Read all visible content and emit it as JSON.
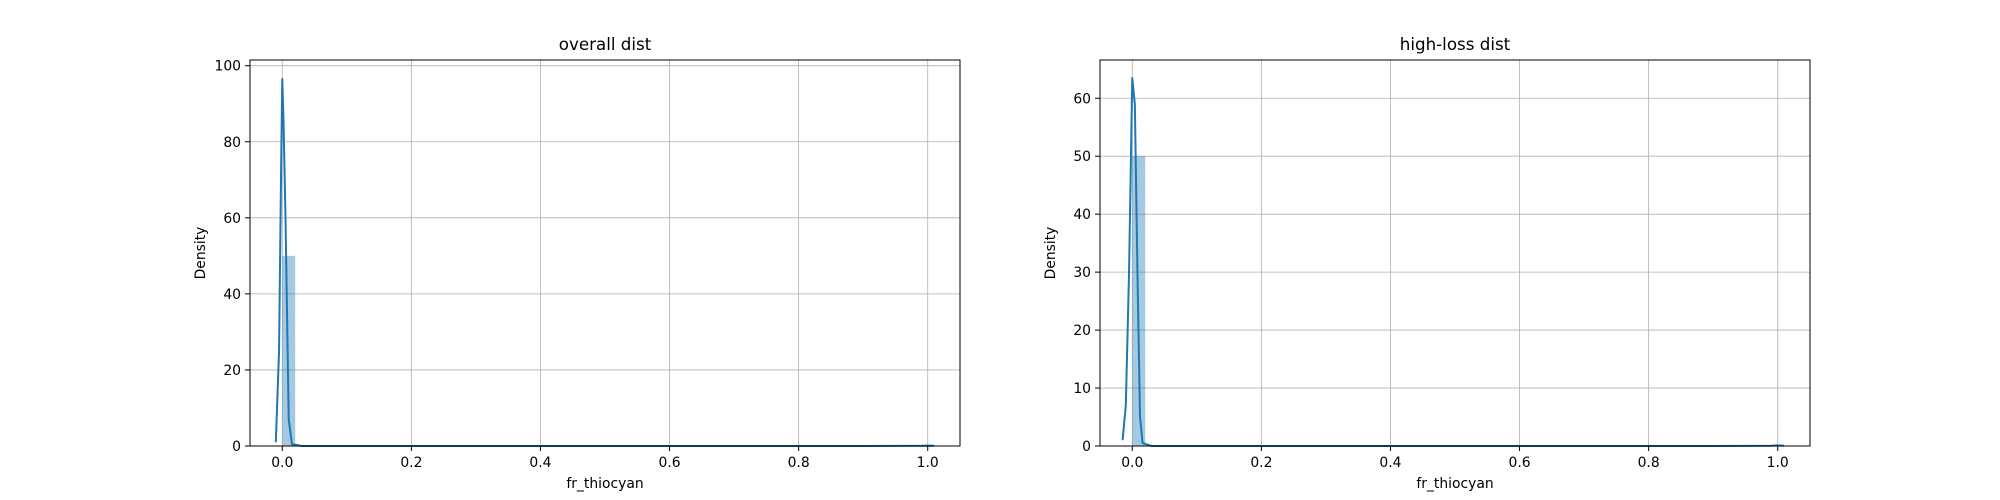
{
  "colors": {
    "kde_line": "#1f77b4",
    "hist_bar": "#1f77b4",
    "grid": "#b0b0b0"
  },
  "chart_data": [
    {
      "type": "bar",
      "title": "overall dist",
      "xlabel": "fr_thiocyan",
      "ylabel": "Density",
      "xlim": [
        -0.05,
        1.05
      ],
      "ylim": [
        0,
        101.5
      ],
      "xticks": [
        0.0,
        0.2,
        0.4,
        0.6,
        0.8,
        1.0
      ],
      "xtick_labels": [
        "0.0",
        "0.2",
        "0.4",
        "0.6",
        "0.8",
        "1.0"
      ],
      "yticks": [
        0,
        20,
        40,
        60,
        80,
        100
      ],
      "ytick_labels": [
        "0",
        "20",
        "40",
        "60",
        "80",
        "100"
      ],
      "grid": true,
      "histogram": {
        "bins": [
          {
            "x0": 0.0,
            "x1": 0.02,
            "density": 50.0
          },
          {
            "x0": 0.98,
            "x1": 1.0,
            "density": 0.1
          }
        ]
      },
      "kde": {
        "x": [
          -0.01,
          -0.005,
          -0.002,
          0.0,
          0.002,
          0.005,
          0.01,
          0.015,
          0.03,
          0.1,
          0.3,
          0.5,
          0.7,
          0.9,
          0.99,
          1.0,
          1.01
        ],
        "y": [
          1.0,
          25.0,
          70.0,
          96.5,
          85.0,
          60.0,
          7.0,
          0.5,
          0.0,
          0.0,
          0.0,
          0.0,
          0.0,
          0.0,
          0.05,
          0.1,
          0.05
        ]
      }
    },
    {
      "type": "bar",
      "title": "high-loss dist",
      "xlabel": "fr_thiocyan",
      "ylabel": "Density",
      "xlim": [
        -0.05,
        1.05
      ],
      "ylim": [
        0,
        66.6
      ],
      "xticks": [
        0.0,
        0.2,
        0.4,
        0.6,
        0.8,
        1.0
      ],
      "xtick_labels": [
        "0.0",
        "0.2",
        "0.4",
        "0.6",
        "0.8",
        "1.0"
      ],
      "yticks": [
        0,
        10,
        20,
        30,
        40,
        50,
        60
      ],
      "ytick_labels": [
        "0",
        "10",
        "20",
        "30",
        "40",
        "50",
        "60"
      ],
      "grid": true,
      "histogram": {
        "bins": [
          {
            "x0": 0.0,
            "x1": 0.02,
            "density": 50.0
          },
          {
            "x0": 0.98,
            "x1": 1.0,
            "density": 0.1
          }
        ]
      },
      "kde": {
        "x": [
          -0.015,
          -0.01,
          -0.005,
          0.0,
          0.004,
          0.008,
          0.012,
          0.016,
          0.03,
          0.1,
          0.3,
          0.5,
          0.7,
          0.9,
          0.99,
          1.0,
          1.01
        ],
        "y": [
          1.0,
          7.0,
          30.0,
          63.5,
          59.0,
          30.0,
          5.0,
          0.5,
          0.0,
          0.0,
          0.0,
          0.0,
          0.0,
          0.0,
          0.05,
          0.1,
          0.05
        ]
      }
    }
  ]
}
